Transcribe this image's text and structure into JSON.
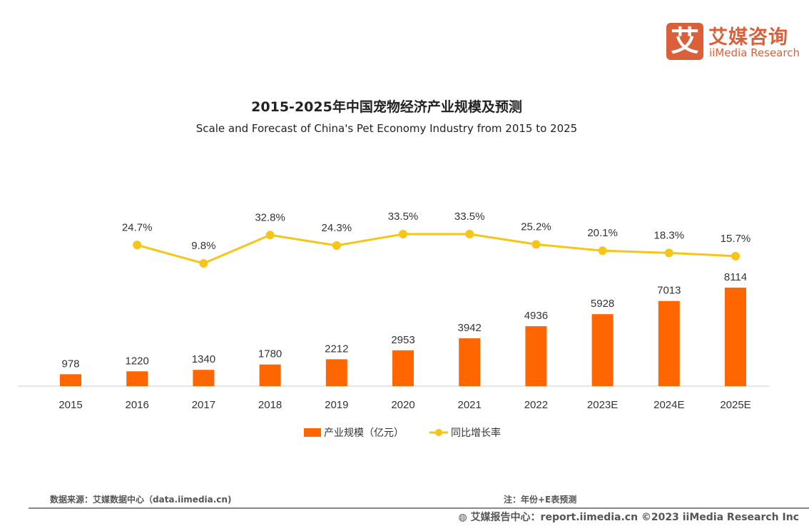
{
  "logo": {
    "cn": "艾媒咨询",
    "en": "iiMedia Research",
    "glyph": "艾"
  },
  "chart_data": {
    "type": "bar+line",
    "title": "2015-2025年中国宠物经济产业规模及预测",
    "subtitle": "Scale and Forecast of China's Pet Economy Industry from 2015 to 2025",
    "categories": [
      "2015",
      "2016",
      "2017",
      "2018",
      "2019",
      "2020",
      "2021",
      "2022",
      "2023E",
      "2024E",
      "2025E"
    ],
    "series": [
      {
        "name": "产业规模（亿元）",
        "type": "bar",
        "color": "#ff6600",
        "values": [
          978,
          1220,
          1340,
          1780,
          2212,
          2953,
          3942,
          4936,
          5928,
          7013,
          8114
        ],
        "labels": [
          "978",
          "1220",
          "1340",
          "1780",
          "2212",
          "2953",
          "3942",
          "4936",
          "5928",
          "7013",
          "8114"
        ]
      },
      {
        "name": "同比增长率",
        "type": "line",
        "color": "#f5c518",
        "values": [
          null,
          24.7,
          9.8,
          32.8,
          24.3,
          33.5,
          33.5,
          25.2,
          20.1,
          18.3,
          15.7
        ],
        "labels": [
          "",
          "24.7%",
          "9.8%",
          "32.8%",
          "24.3%",
          "33.5%",
          "33.5%",
          "25.2%",
          "20.1%",
          "18.3%",
          "15.7%"
        ]
      }
    ],
    "legend": "bottom",
    "grid": false
  },
  "footer": {
    "source": "数据来源：艾媒数据中心（data.iimedia.cn)",
    "note": "注：年份+E表预测",
    "report": "艾媒报告中心：report.iimedia.cn   ©2023  iiMedia Research Inc"
  }
}
